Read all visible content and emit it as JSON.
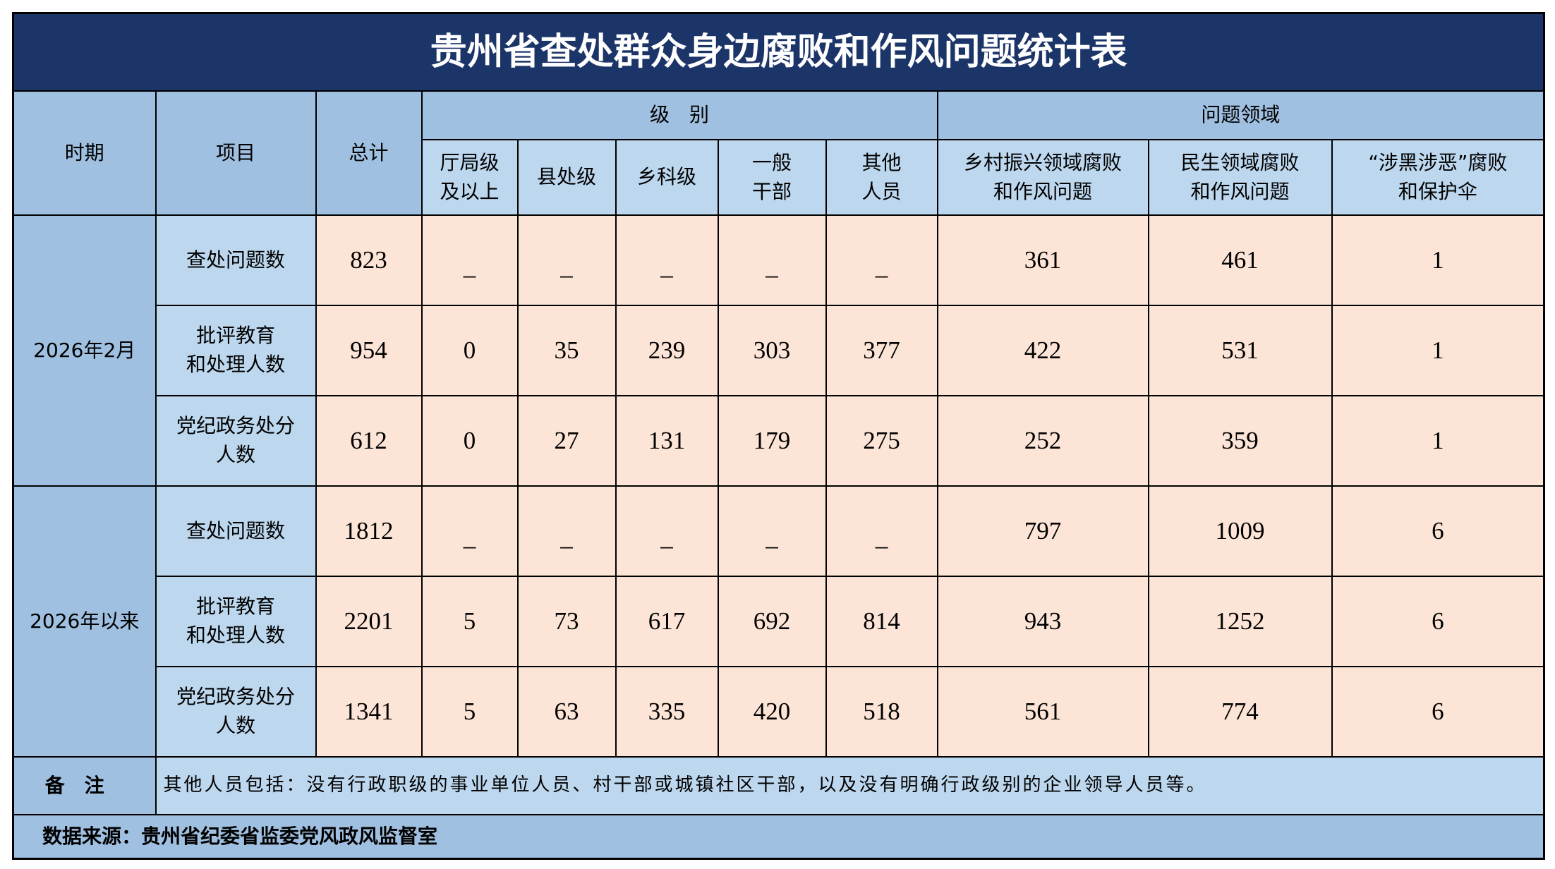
{
  "title": "贵州省查处群众身边腐败和作风问题统计表",
  "header": {
    "period": "时期",
    "item": "项目",
    "total": "总计",
    "level_group": "级　别",
    "domain_group": "问题领域",
    "levels": [
      "厅局级\n及以上",
      "县处级",
      "乡科级",
      "一般\n干部",
      "其他\n人员"
    ],
    "domains": [
      "乡村振兴领域腐败\n和作风问题",
      "民生领域腐败\n和作风问题",
      "“涉黑涉恶”腐败\n和保护伞"
    ]
  },
  "periods": [
    {
      "label": "2026年2月",
      "rows": [
        {
          "item": "查处问题数",
          "total": "823",
          "levels": [
            "_",
            "_",
            "_",
            "_",
            "_"
          ],
          "domains": [
            "361",
            "461",
            "1"
          ]
        },
        {
          "item": "批评教育\n和处理人数",
          "total": "954",
          "levels": [
            "0",
            "35",
            "239",
            "303",
            "377"
          ],
          "domains": [
            "422",
            "531",
            "1"
          ]
        },
        {
          "item": "党纪政务处分\n人数",
          "total": "612",
          "levels": [
            "0",
            "27",
            "131",
            "179",
            "275"
          ],
          "domains": [
            "252",
            "359",
            "1"
          ]
        }
      ]
    },
    {
      "label": "2026年以来",
      "rows": [
        {
          "item": "查处问题数",
          "total": "1812",
          "levels": [
            "_",
            "_",
            "_",
            "_",
            "_"
          ],
          "domains": [
            "797",
            "1009",
            "6"
          ]
        },
        {
          "item": "批评教育\n和处理人数",
          "total": "2201",
          "levels": [
            "5",
            "73",
            "617",
            "692",
            "814"
          ],
          "domains": [
            "943",
            "1252",
            "6"
          ]
        },
        {
          "item": "党纪政务处分\n人数",
          "total": "1341",
          "levels": [
            "5",
            "63",
            "335",
            "420",
            "518"
          ],
          "domains": [
            "561",
            "774",
            "6"
          ]
        }
      ]
    }
  ],
  "remark": {
    "label": "备注",
    "text": "其他人员包括：没有行政职级的事业单位人员、村干部或城镇社区干部，以及没有明确行政级别的企业领导人员等。"
  },
  "source": "数据来源：贵州省纪委省监委党风政风监督室",
  "colors": {
    "title_bg": "#1c3569",
    "header_bg": "#9fc0e0",
    "item_bg": "#bdd7ee",
    "data_bg": "#fce4d6"
  }
}
